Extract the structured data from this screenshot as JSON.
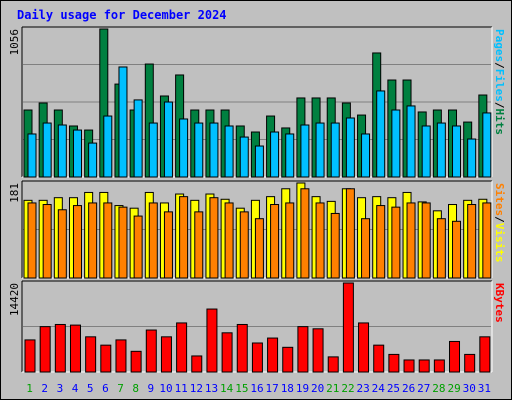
{
  "chart_data": [
    {
      "type": "bar",
      "title": "Daily usage for December 2024",
      "categories": [
        "1",
        "2",
        "3",
        "4",
        "5",
        "6",
        "7",
        "8",
        "9",
        "10",
        "11",
        "12",
        "13",
        "14",
        "15",
        "16",
        "17",
        "18",
        "19",
        "20",
        "21",
        "22",
        "23",
        "24",
        "25",
        "26",
        "27",
        "28",
        "29",
        "30",
        "31"
      ],
      "weekend_days": [
        "1",
        "7",
        "8",
        "14",
        "15",
        "21",
        "22",
        "28",
        "29"
      ],
      "y_max_label": "1056",
      "ylim": [
        0,
        1056
      ],
      "y_axis_label_parts": [
        "Pages",
        "Files",
        "Hits"
      ],
      "series": [
        {
          "name": "Hits",
          "color": "#008040",
          "values": [
            478,
            528,
            478,
            364,
            335,
            1056,
            663,
            478,
            806,
            578,
            728,
            478,
            478,
            478,
            364,
            321,
            435,
            350,
            564,
            564,
            564,
            528,
            442,
            885,
            692,
            692,
            464,
            478,
            478,
            392,
            585
          ]
        },
        {
          "name": "Files",
          "color": "#00c0ff",
          "values": [
            307,
            385,
            371,
            335,
            242,
            435,
            785,
            550,
            385,
            535,
            414,
            385,
            385,
            364,
            285,
            221,
            321,
            307,
            371,
            385,
            385,
            421,
            307,
            614,
            478,
            507,
            364,
            385,
            364,
            271,
            457
          ]
        },
        {
          "name": "Pages",
          "color": "#0000ff",
          "values": [
            0,
            0,
            0,
            0,
            0,
            0,
            0,
            0,
            0,
            0,
            0,
            0,
            0,
            0,
            0,
            0,
            0,
            0,
            0,
            0,
            0,
            0,
            0,
            0,
            0,
            0,
            0,
            0,
            0,
            0,
            0
          ]
        }
      ]
    },
    {
      "type": "bar",
      "categories": [
        "1",
        "2",
        "3",
        "4",
        "5",
        "6",
        "7",
        "8",
        "9",
        "10",
        "11",
        "12",
        "13",
        "14",
        "15",
        "16",
        "17",
        "18",
        "19",
        "20",
        "21",
        "22",
        "23",
        "24",
        "25",
        "26",
        "27",
        "28",
        "29",
        "30",
        "31"
      ],
      "y_max_label": "181",
      "ylim": [
        0,
        181
      ],
      "y_axis_label_parts": [
        "Sites",
        "Visits"
      ],
      "series": [
        {
          "name": "Visits",
          "color": "#ffff00",
          "values": [
            148,
            148,
            153,
            153,
            163,
            163,
            138,
            133,
            163,
            143,
            160,
            148,
            160,
            150,
            133,
            148,
            155,
            170,
            181,
            155,
            146,
            170,
            153,
            155,
            153,
            163,
            145,
            128,
            140,
            148,
            150
          ]
        },
        {
          "name": "Sites",
          "color": "#ff8000",
          "values": [
            143,
            140,
            130,
            138,
            143,
            143,
            135,
            118,
            143,
            126,
            155,
            126,
            153,
            143,
            126,
            113,
            140,
            143,
            170,
            143,
            123,
            170,
            113,
            138,
            135,
            143,
            143,
            113,
            108,
            140,
            143
          ]
        }
      ]
    },
    {
      "type": "bar",
      "categories": [
        "1",
        "2",
        "3",
        "4",
        "5",
        "6",
        "7",
        "8",
        "9",
        "10",
        "11",
        "12",
        "13",
        "14",
        "15",
        "16",
        "17",
        "18",
        "19",
        "20",
        "21",
        "22",
        "23",
        "24",
        "25",
        "26",
        "27",
        "28",
        "29",
        "30",
        "31"
      ],
      "y_max_label": "14420",
      "ylim": [
        0,
        14420
      ],
      "y_axis_label_parts": [
        "KBytes"
      ],
      "series": [
        {
          "name": "KBytes",
          "color": "#ff0000",
          "values": [
            5200,
            7350,
            7700,
            7600,
            5700,
            4350,
            5200,
            3350,
            6800,
            5700,
            7950,
            2600,
            10200,
            6350,
            7700,
            4700,
            5500,
            4000,
            7350,
            7000,
            2450,
            14420,
            7950,
            4350,
            2850,
            1950,
            1950,
            1950,
            4950,
            2850,
            5700
          ]
        }
      ]
    }
  ],
  "colors": {
    "background": "#c0c0c0",
    "plot_background": "#c0c0c0",
    "title": "#0000ff",
    "gridline": "#808080",
    "weekday_label": "#0000ff",
    "weekend_label": "#00a000",
    "bar_outline": "#000000"
  }
}
